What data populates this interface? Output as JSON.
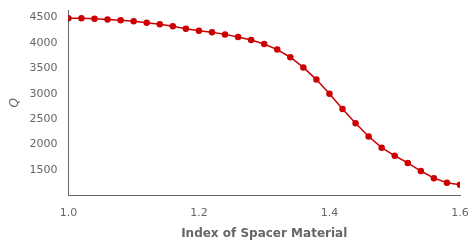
{
  "chart_data": {
    "type": "line",
    "x": [
      1.0,
      1.02,
      1.04,
      1.06,
      1.08,
      1.1,
      1.12,
      1.14,
      1.16,
      1.18,
      1.2,
      1.22,
      1.24,
      1.26,
      1.28,
      1.3,
      1.32,
      1.34,
      1.36,
      1.38,
      1.4,
      1.42,
      1.44,
      1.46,
      1.48,
      1.5,
      1.52,
      1.54,
      1.56,
      1.58,
      1.6
    ],
    "values": [
      4490,
      4490,
      4480,
      4465,
      4450,
      4430,
      4400,
      4370,
      4330,
      4280,
      4240,
      4210,
      4170,
      4120,
      4060,
      3980,
      3870,
      3720,
      3520,
      3280,
      3000,
      2700,
      2420,
      2160,
      1940,
      1780,
      1640,
      1480,
      1340,
      1250,
      1210
    ],
    "color": "#cc0000",
    "marker": "circle",
    "line_style": "solid",
    "x_label": "Index of Spacer Material",
    "y_label": "Q",
    "xlim": [
      1.0,
      1.6
    ],
    "xticks": [
      {
        "value": 1.0,
        "label": "1.0"
      },
      1.2,
      1.4,
      1.6
    ],
    "ylim": [
      1000,
      4650
    ],
    "yticks": [
      1500,
      2000,
      2500,
      3000,
      3500,
      4000,
      4500
    ],
    "grid": false
  }
}
